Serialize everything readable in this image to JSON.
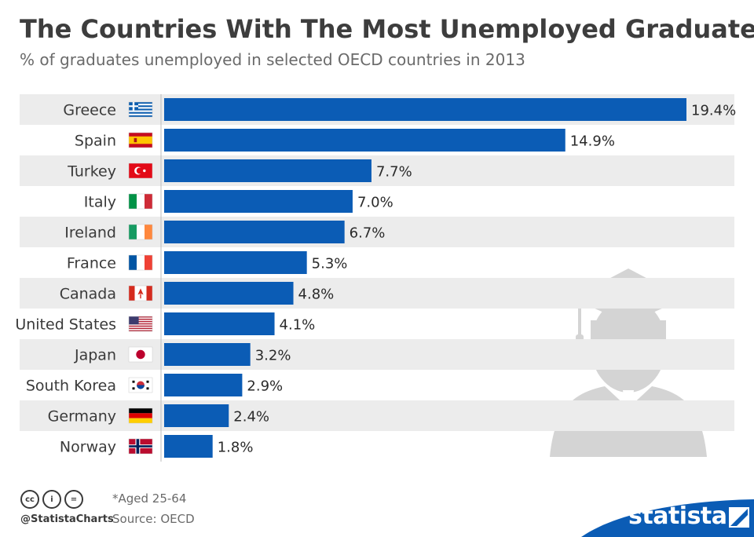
{
  "title": "The Countries With The Most Unemployed Graduates",
  "subtitle": "% of graduates unemployed in selected OECD countries in 2013",
  "chart_data": {
    "type": "bar",
    "orientation": "horizontal",
    "categories": [
      "Greece",
      "Spain",
      "Turkey",
      "Italy",
      "Ireland",
      "France",
      "Canada",
      "United States",
      "Japan",
      "South Korea",
      "Germany",
      "Norway"
    ],
    "values": [
      19.4,
      14.9,
      7.7,
      7.0,
      6.7,
      5.3,
      4.8,
      4.1,
      3.2,
      2.9,
      2.4,
      1.8
    ],
    "value_labels": [
      "19.4%",
      "14.9%",
      "7.7%",
      "7.0%",
      "6.7%",
      "5.3%",
      "4.8%",
      "4.1%",
      "3.2%",
      "2.9%",
      "2.4%",
      "1.8%"
    ],
    "flags": [
      "greece-flag-icon",
      "spain-flag-icon",
      "turkey-flag-icon",
      "italy-flag-icon",
      "ireland-flag-icon",
      "france-flag-icon",
      "canada-flag-icon",
      "united-states-flag-icon",
      "japan-flag-icon",
      "south-korea-flag-icon",
      "germany-flag-icon",
      "norway-flag-icon"
    ],
    "xlim": [
      0,
      19.4
    ],
    "grid": false,
    "legend": "none",
    "bar_color": "#0b5cb5",
    "stripe_color": "#ececec"
  },
  "footer": {
    "handle": "@StatistaCharts",
    "note": "*Aged 25-64",
    "source": "Source: OECD",
    "brand": "statista",
    "icons": [
      "creative-commons-icon",
      "attribution-icon",
      "no-derivatives-icon"
    ],
    "brand_color": "#0b5cb5"
  }
}
